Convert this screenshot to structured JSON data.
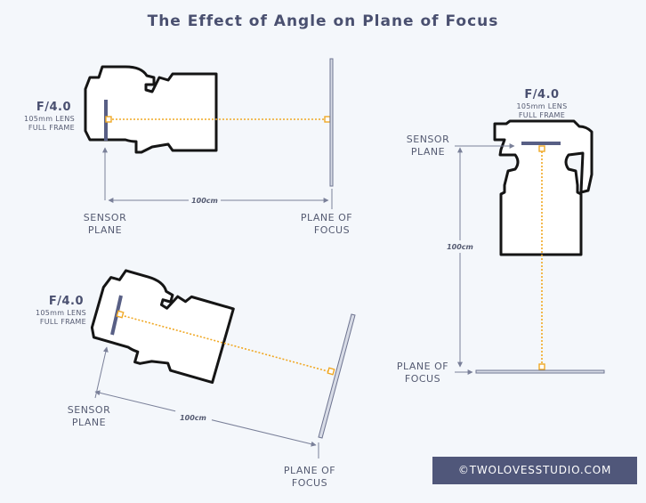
{
  "title": "The Effect of Angle on Plane of Focus",
  "diagram1": {
    "aperture": "F/4.0",
    "lens": "105mm LENS",
    "format": "FULL FRAME",
    "sensor_label": [
      "SENSOR",
      "PLANE"
    ],
    "focus_label": [
      "PLANE OF",
      "FOCUS"
    ],
    "distance": "100cm"
  },
  "diagram2": {
    "aperture": "F/4.0",
    "lens": "105mm LENS",
    "format": "FULL FRAME",
    "sensor_label": [
      "SENSOR",
      "PLANE"
    ],
    "focus_label": [
      "PLANE OF",
      "FOCUS"
    ],
    "distance": "100cm"
  },
  "diagram3": {
    "aperture": "F/4.0",
    "lens": "105mm LENS",
    "format": "FULL FRAME",
    "sensor_label": [
      "SENSOR",
      "PLANE"
    ],
    "focus_label": [
      "PLANE OF",
      "FOCUS"
    ],
    "distance": "100cm"
  },
  "credit": "©TWOLOVESSTUDIO.COM",
  "colors": {
    "background": "#f4f7fb",
    "title": "#4a5070",
    "sensor": "#585f85",
    "focus_line": "#f0a824",
    "credit_bg": "#50577a"
  }
}
